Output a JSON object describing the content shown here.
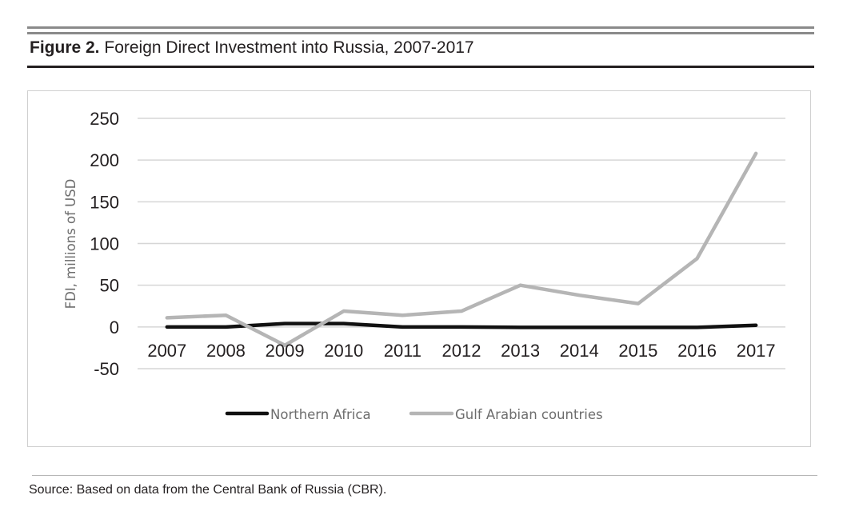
{
  "figure": {
    "label": "Figure 2.",
    "title": "Foreign Direct Investment into Russia, 2007-2017"
  },
  "source": "Source: Based on data from the Central Bank of Russia (CBR).",
  "chart_data": {
    "type": "line",
    "title": "",
    "xlabel": "",
    "ylabel": "FDI, millions of USD",
    "x": [
      "2007",
      "2008",
      "2009",
      "2010",
      "2011",
      "2012",
      "2013",
      "2014",
      "2015",
      "2016",
      "2017"
    ],
    "ylim": [
      -50,
      250
    ],
    "yticks": [
      -50,
      0,
      50,
      100,
      150,
      200,
      250
    ],
    "grid": "horizontal",
    "legend_position": "bottom",
    "series": [
      {
        "name": "Northern Africa",
        "color": "#111111",
        "values": [
          0,
          0,
          4,
          4,
          0,
          0,
          -0.5,
          -0.5,
          -0.5,
          -0.5,
          2
        ]
      },
      {
        "name": "Gulf Arabian countries",
        "color": "#b5b5b5",
        "values": [
          11,
          14,
          -22,
          19,
          14,
          19,
          50,
          38,
          28,
          82,
          208
        ]
      }
    ]
  }
}
